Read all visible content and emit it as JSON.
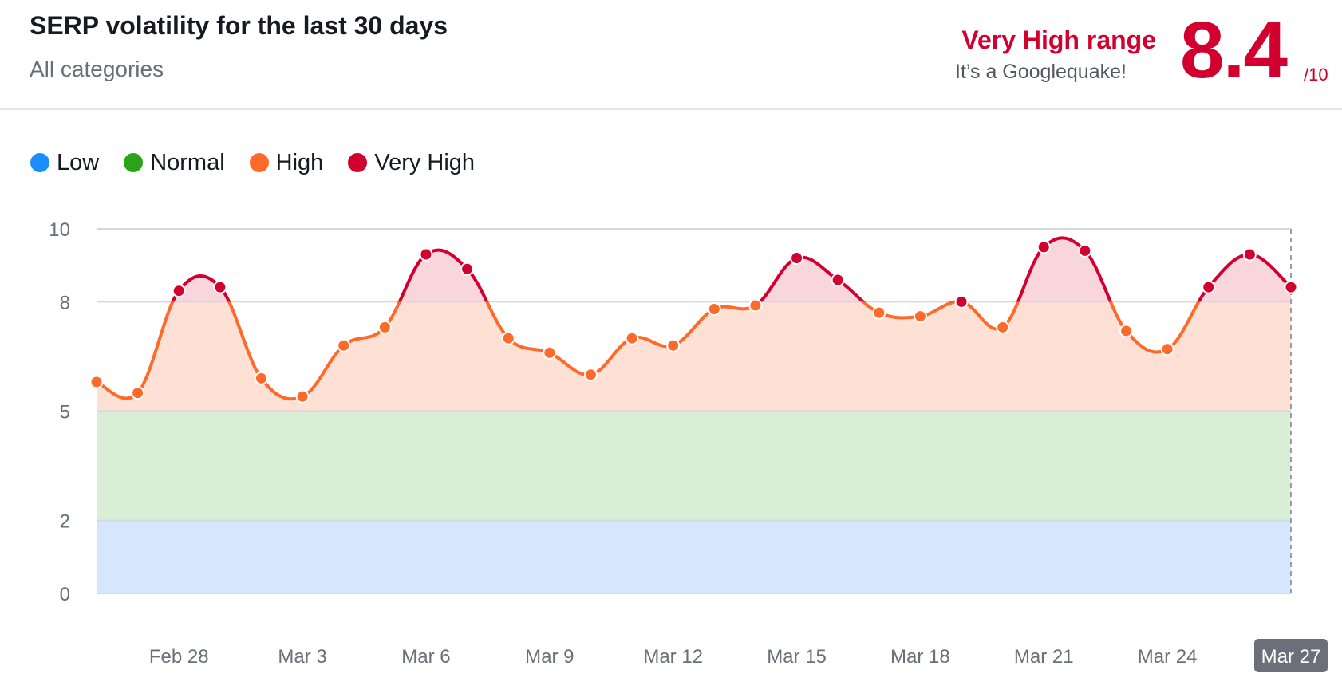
{
  "header": {
    "title": "SERP volatility for the last 30 days",
    "subtitle": "All categories",
    "range_label": "Very High range",
    "range_desc": "It’s a Googlequake!",
    "score": "8.4",
    "score_max": "/10"
  },
  "legend": [
    {
      "label": "Low",
      "color": "#1a8dff",
      "icon": "circle"
    },
    {
      "label": "Normal",
      "color": "#2ba318",
      "icon": "circle"
    },
    {
      "label": "High",
      "color": "#ff6a2b",
      "icon": "circle"
    },
    {
      "label": "Very High",
      "color": "#d1002f",
      "icon": "circle"
    }
  ],
  "colors": {
    "low_band": "#d5e7fd",
    "normal_band": "#d9eed5",
    "high_band": "#ffe0d5",
    "very_high_band": "#f8d6dc",
    "high_line": "#ff6a2b",
    "very_high_line": "#d1002f",
    "grid": "#d6d8e0",
    "axis_text": "#6c6e79",
    "selected_label_bg": "#6c6e79"
  },
  "chart_data": {
    "type": "area",
    "x": [
      "Feb 26",
      "Feb 27",
      "Feb 28",
      "Mar 1",
      "Mar 2",
      "Mar 3",
      "Mar 4",
      "Mar 5",
      "Mar 6",
      "Mar 7",
      "Mar 8",
      "Mar 9",
      "Mar 10",
      "Mar 11",
      "Mar 12",
      "Mar 13",
      "Mar 14",
      "Mar 15",
      "Mar 16",
      "Mar 17",
      "Mar 18",
      "Mar 19",
      "Mar 20",
      "Mar 21",
      "Mar 22",
      "Mar 23",
      "Mar 24",
      "Mar 25",
      "Mar 26",
      "Mar 27"
    ],
    "values": [
      5.8,
      5.5,
      8.3,
      8.4,
      5.9,
      5.4,
      6.8,
      7.3,
      9.3,
      8.9,
      7.0,
      6.6,
      6.0,
      7.0,
      6.8,
      7.8,
      7.9,
      9.2,
      8.6,
      7.7,
      7.6,
      8.0,
      7.3,
      9.5,
      9.4,
      7.2,
      6.7,
      8.4,
      9.3,
      8.4
    ],
    "xticks": [
      "Feb 28",
      "Mar 3",
      "Mar 6",
      "Mar 9",
      "Mar 12",
      "Mar 15",
      "Mar 18",
      "Mar 21",
      "Mar 24",
      "Mar 27"
    ],
    "yticks": [
      0,
      2,
      5,
      8,
      10
    ],
    "ylim": [
      0,
      10
    ],
    "bands": [
      {
        "name": "Low",
        "from": 0,
        "to": 2
      },
      {
        "name": "Normal",
        "from": 2,
        "to": 5
      },
      {
        "name": "High",
        "from": 5,
        "to": 8
      },
      {
        "name": "Very High",
        "from": 8,
        "to": 10
      }
    ],
    "selected": "Mar 27",
    "grid": true,
    "legend_position": "top-left"
  }
}
